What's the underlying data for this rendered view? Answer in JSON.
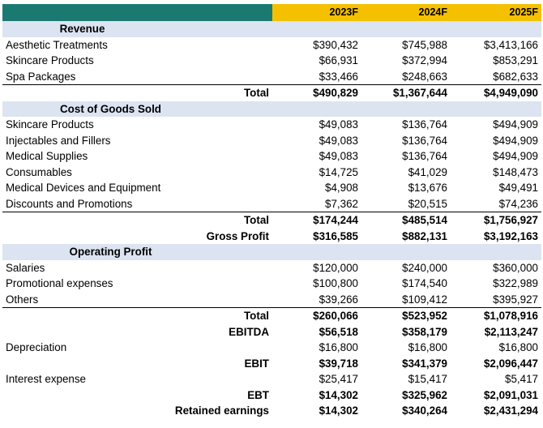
{
  "header": {
    "years": [
      "2023F",
      "2024F",
      "2025F"
    ]
  },
  "revenue": {
    "title": "Revenue",
    "items": [
      {
        "label": "Aesthetic Treatments",
        "values": [
          "$390,432",
          "$745,988",
          "$3,413,166"
        ]
      },
      {
        "label": "Skincare Products",
        "values": [
          "$66,931",
          "$372,994",
          "$853,291"
        ]
      },
      {
        "label": "Spa Packages",
        "values": [
          "$33,466",
          "$248,663",
          "$682,633"
        ]
      }
    ],
    "total": {
      "label": "Total",
      "values": [
        "$490,829",
        "$1,367,644",
        "$4,949,090"
      ]
    }
  },
  "cogs": {
    "title": "Cost of Goods Sold",
    "items": [
      {
        "label": "Skincare Products",
        "values": [
          "$49,083",
          "$136,764",
          "$494,909"
        ]
      },
      {
        "label": "Injectables and Fillers",
        "values": [
          "$49,083",
          "$136,764",
          "$494,909"
        ]
      },
      {
        "label": "Medical Supplies",
        "values": [
          "$49,083",
          "$136,764",
          "$494,909"
        ]
      },
      {
        "label": "Consumables",
        "values": [
          "$14,725",
          "$41,029",
          "$148,473"
        ]
      },
      {
        "label": "Medical Devices and Equipment",
        "values": [
          "$4,908",
          "$13,676",
          "$49,491"
        ]
      },
      {
        "label": "Discounts and Promotions",
        "values": [
          "$7,362",
          "$20,515",
          "$74,236"
        ]
      }
    ],
    "total": {
      "label": "Total",
      "values": [
        "$174,244",
        "$485,514",
        "$1,756,927"
      ]
    },
    "gross_profit": {
      "label": "Gross Profit",
      "values": [
        "$316,585",
        "$882,131",
        "$3,192,163"
      ]
    }
  },
  "opex": {
    "title": "Operating Profit",
    "items": [
      {
        "label": "Salaries",
        "values": [
          "$120,000",
          "$240,000",
          "$360,000"
        ]
      },
      {
        "label": "Promotional expenses",
        "values": [
          "$100,800",
          "$174,540",
          "$322,989"
        ]
      },
      {
        "label": "Others",
        "values": [
          "$39,266",
          "$109,412",
          "$395,927"
        ]
      }
    ],
    "total": {
      "label": "Total",
      "values": [
        "$260,066",
        "$523,952",
        "$1,078,916"
      ]
    },
    "ebitda": {
      "label": "EBITDA",
      "values": [
        "$56,518",
        "$358,179",
        "$2,113,247"
      ]
    },
    "depreciation": {
      "label": "Depreciation",
      "values": [
        "$16,800",
        "$16,800",
        "$16,800"
      ]
    },
    "ebit": {
      "label": "EBIT",
      "values": [
        "$39,718",
        "$341,379",
        "$2,096,447"
      ]
    },
    "interest": {
      "label": "Interest expense",
      "values": [
        "$25,417",
        "$15,417",
        "$5,417"
      ]
    },
    "ebt": {
      "label": "EBT",
      "values": [
        "$14,302",
        "$325,962",
        "$2,091,031"
      ]
    },
    "retained": {
      "label": "Retained earnings",
      "values": [
        "$14,302",
        "$340,264",
        "$2,431,294"
      ]
    }
  },
  "colors": {
    "header_teal": "#1a7a72",
    "header_yellow": "#f5c000",
    "section_bg": "#dce4f2"
  }
}
